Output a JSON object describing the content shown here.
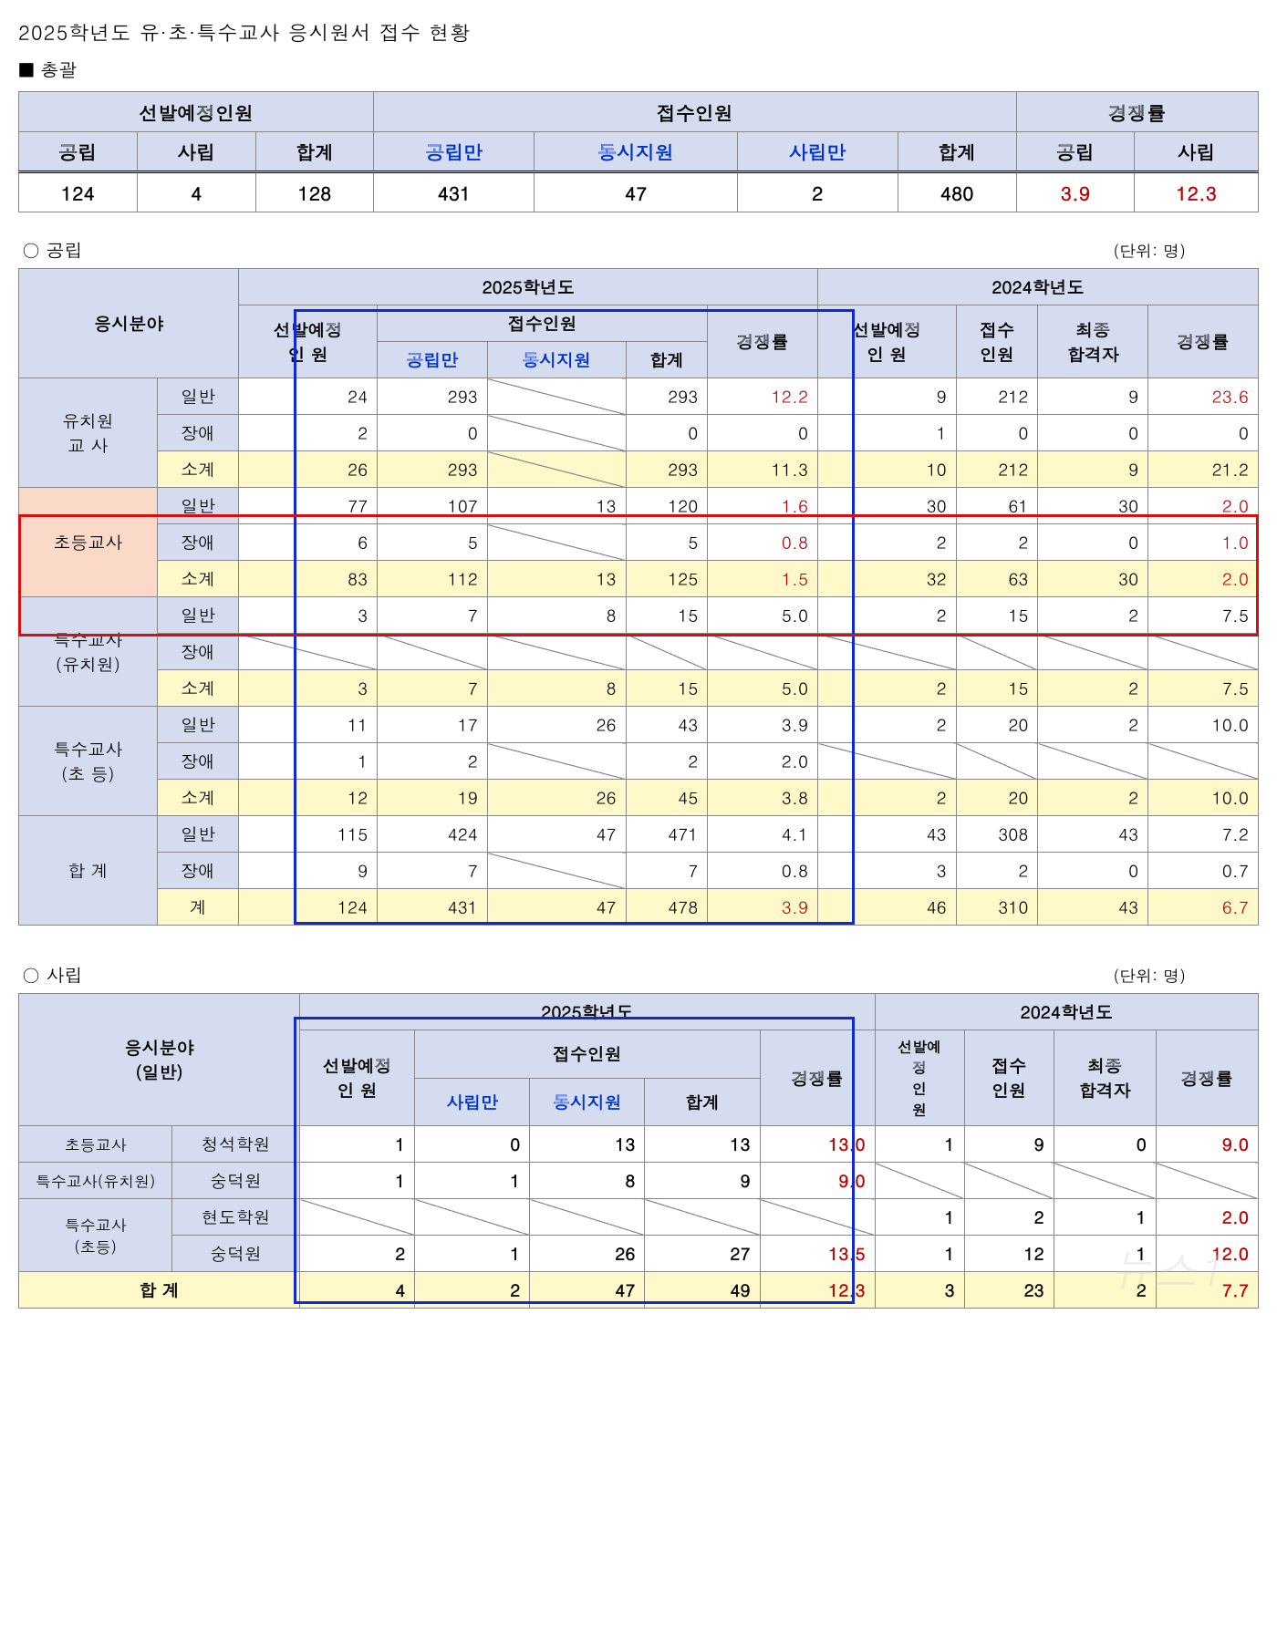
{
  "page": {
    "title": "2025학년도 유·초·특수교사 응시원서 접수 현황",
    "section_summary": "■ 총괄",
    "section_public": "○ 공립",
    "section_private": "○ 사립",
    "unit_label": "(단위: 명)"
  },
  "colors": {
    "header_bg": "#d6dcf0",
    "subtotal_bg": "#fff8c8",
    "highlight_row_bg": "#fbd9c8",
    "ratio_red": "#c00000",
    "blue_text": "#0033cc",
    "blue_box": "#1029d6",
    "red_box": "#d61010"
  },
  "summary": {
    "headers": {
      "plan": "선발예정인원",
      "recv": "접수인원",
      "ratio": "경쟁률",
      "public": "공립",
      "private": "사립",
      "total": "합계",
      "public_only": "공립만",
      "both": "동시지원",
      "private_only": "사립만"
    },
    "row": {
      "plan_public": "124",
      "plan_private": "4",
      "plan_total": "128",
      "recv_public_only": "431",
      "recv_both": "47",
      "recv_private_only": "2",
      "recv_total": "480",
      "ratio_public": "3.9",
      "ratio_private": "12.3"
    }
  },
  "public_table": {
    "headers": {
      "field": "응시분야",
      "year2025": "2025학년도",
      "year2024": "2024학년도",
      "plan": "선발예정\n인   원",
      "recv": "접수인원",
      "recv_pub": "공립만",
      "recv_both": "동시지원",
      "recv_tot": "합계",
      "ratio": "경쟁률",
      "p24_plan": "선발예정\n인   원",
      "p24_recv": "접수\n인원",
      "p24_pass": "최종\n합격자"
    },
    "groups": [
      {
        "name": "유치원\n교  사",
        "rows": [
          {
            "sub": "일반",
            "plan": "24",
            "pub": "293",
            "both": "",
            "tot": "293",
            "ratio": "12.2",
            "ratio_red": true,
            "p_plan": "9",
            "p_recv": "212",
            "p_pass": "9",
            "p_ratio": "23.6",
            "p_ratio_red": true,
            "both_diag": true
          },
          {
            "sub": "장애",
            "plan": "2",
            "pub": "0",
            "both": "",
            "tot": "0",
            "ratio": "0",
            "p_plan": "1",
            "p_recv": "0",
            "p_pass": "0",
            "p_ratio": "0",
            "both_diag": true
          },
          {
            "sub": "소계",
            "subtotal": true,
            "plan": "26",
            "pub": "293",
            "both": "",
            "tot": "293",
            "ratio": "11.3",
            "p_plan": "10",
            "p_recv": "212",
            "p_pass": "9",
            "p_ratio": "21.2",
            "both_diag": true
          }
        ]
      },
      {
        "name": "초등교사",
        "highlight": true,
        "rows": [
          {
            "sub": "일반",
            "plan": "77",
            "pub": "107",
            "both": "13",
            "tot": "120",
            "ratio": "1.6",
            "ratio_red": true,
            "p_plan": "30",
            "p_recv": "61",
            "p_pass": "30",
            "p_ratio": "2.0",
            "p_ratio_red": true
          },
          {
            "sub": "장애",
            "plan": "6",
            "pub": "5",
            "both": "",
            "tot": "5",
            "ratio": "0.8",
            "ratio_red": true,
            "p_plan": "2",
            "p_recv": "2",
            "p_pass": "0",
            "p_ratio": "1.0",
            "p_ratio_red": true,
            "both_diag": true
          },
          {
            "sub": "소계",
            "subtotal": true,
            "plan": "83",
            "pub": "112",
            "both": "13",
            "tot": "125",
            "ratio": "1.5",
            "ratio_red": true,
            "p_plan": "32",
            "p_recv": "63",
            "p_pass": "30",
            "p_ratio": "2.0",
            "p_ratio_red": true
          }
        ]
      },
      {
        "name": "특수교사\n(유치원)",
        "rows": [
          {
            "sub": "일반",
            "plan": "3",
            "pub": "7",
            "both": "8",
            "tot": "15",
            "ratio": "5.0",
            "p_plan": "2",
            "p_recv": "15",
            "p_pass": "2",
            "p_ratio": "7.5"
          },
          {
            "sub": "장애",
            "plan": "",
            "pub": "",
            "both": "",
            "tot": "",
            "ratio": "",
            "p_plan": "",
            "p_recv": "",
            "p_pass": "",
            "p_ratio": "",
            "all_diag": true
          },
          {
            "sub": "소계",
            "subtotal": true,
            "plan": "3",
            "pub": "7",
            "both": "8",
            "tot": "15",
            "ratio": "5.0",
            "p_plan": "2",
            "p_recv": "15",
            "p_pass": "2",
            "p_ratio": "7.5"
          }
        ]
      },
      {
        "name": "특수교사\n(초  등)",
        "rows": [
          {
            "sub": "일반",
            "plan": "11",
            "pub": "17",
            "both": "26",
            "tot": "43",
            "ratio": "3.9",
            "p_plan": "2",
            "p_recv": "20",
            "p_pass": "2",
            "p_ratio": "10.0"
          },
          {
            "sub": "장애",
            "plan": "1",
            "pub": "2",
            "both": "",
            "tot": "2",
            "ratio": "2.0",
            "p_plan": "",
            "p_recv": "",
            "p_pass": "",
            "p_ratio": "",
            "both_diag": true,
            "p_all_diag": true
          },
          {
            "sub": "소계",
            "subtotal": true,
            "plan": "12",
            "pub": "19",
            "both": "26",
            "tot": "45",
            "ratio": "3.8",
            "p_plan": "2",
            "p_recv": "20",
            "p_pass": "2",
            "p_ratio": "10.0"
          }
        ]
      },
      {
        "name": "합  계",
        "rows": [
          {
            "sub": "일반",
            "plan": "115",
            "pub": "424",
            "both": "47",
            "tot": "471",
            "ratio": "4.1",
            "p_plan": "43",
            "p_recv": "308",
            "p_pass": "43",
            "p_ratio": "7.2"
          },
          {
            "sub": "장애",
            "plan": "9",
            "pub": "7",
            "both": "",
            "tot": "7",
            "ratio": "0.8",
            "p_plan": "3",
            "p_recv": "2",
            "p_pass": "0",
            "p_ratio": "0.7",
            "both_diag": true
          },
          {
            "sub": "계",
            "subtotal": true,
            "plan": "124",
            "pub": "431",
            "both": "47",
            "tot": "478",
            "ratio": "3.9",
            "ratio_red": true,
            "p_plan": "46",
            "p_recv": "310",
            "p_pass": "43",
            "p_ratio": "6.7",
            "p_ratio_red": true
          }
        ]
      }
    ]
  },
  "private_table": {
    "headers": {
      "field": "응시분야\n(일반)",
      "year2025": "2025학년도",
      "year2024": "2024학년도",
      "plan": "선발예정\n인   원",
      "recv": "접수인원",
      "recv_priv": "사립만",
      "recv_both": "동시지원",
      "recv_tot": "합계",
      "ratio": "경쟁률",
      "p24_plan": "선발예\n정\n인\n원",
      "p24_recv": "접수\n인원",
      "p24_pass": "최종\n합격자"
    },
    "rows": [
      {
        "cat": "초등교사",
        "school": "청석학원",
        "plan": "1",
        "priv": "0",
        "both": "13",
        "tot": "13",
        "ratio": "13.0",
        "ratio_red": true,
        "bold": true,
        "p_plan": "1",
        "p_recv": "9",
        "p_pass": "0",
        "p_ratio": "9.0",
        "p_ratio_red": true,
        "p_bold": true
      },
      {
        "cat": "특수교사(유치원)",
        "school": "숭덕원",
        "plan": "1",
        "priv": "1",
        "both": "8",
        "tot": "9",
        "ratio": "9.0",
        "ratio_red": true,
        "bold": true,
        "p_all_diag": true
      },
      {
        "cat": "특수교사\n(초등)",
        "cat_rowspan": 2,
        "school": "현도학원",
        "all_diag_2025": true,
        "p_plan": "1",
        "p_recv": "2",
        "p_pass": "1",
        "p_ratio": "2.0",
        "p_ratio_red": true,
        "p_bold": true
      },
      {
        "school": "숭덕원",
        "plan": "2",
        "priv": "1",
        "both": "26",
        "tot": "27",
        "ratio": "13.5",
        "ratio_red": true,
        "bold": true,
        "p_plan": "1",
        "p_recv": "12",
        "p_pass": "1",
        "p_ratio": "12.0",
        "p_ratio_red": true,
        "p_bold": true
      }
    ],
    "total": {
      "label": "합  계",
      "plan": "4",
      "priv": "2",
      "both": "47",
      "tot": "49",
      "ratio": "12.3",
      "p_plan": "3",
      "p_recv": "23",
      "p_pass": "2",
      "p_ratio": "7.7"
    }
  },
  "overlays": {
    "public_blue": {
      "left_pct": 22.2,
      "top_pct": 6.3,
      "width_pct": 45.2,
      "height_pct": 93.5
    },
    "public_red": {
      "left_pct": 0,
      "top_pct": 37.5,
      "width_pct": 100,
      "height_pct": 18.5
    },
    "private_blue": {
      "left_pct": 22.2,
      "top_pct": 7.5,
      "width_pct": 45.2,
      "height_pct": 91
    }
  },
  "watermark": "뉴스1"
}
